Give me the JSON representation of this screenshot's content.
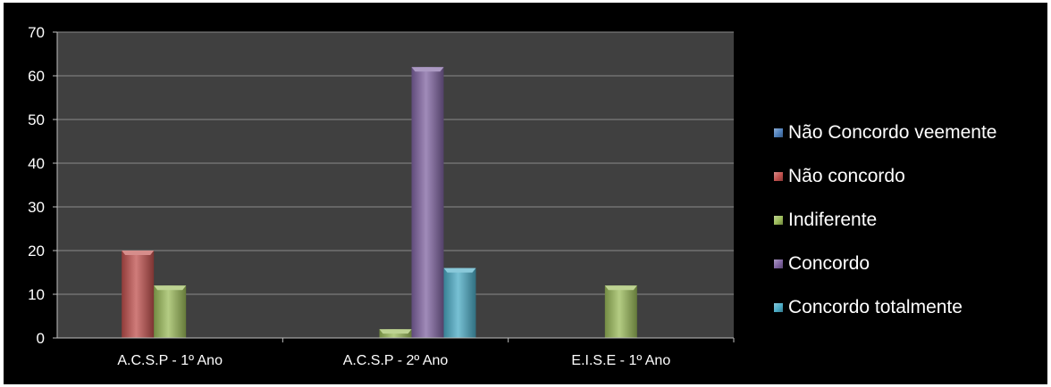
{
  "chart_data": {
    "type": "bar",
    "categories": [
      "A.C.S.P - 1º Ano",
      "A.C.S.P - 2º Ano",
      "E.I.S.E - 1º Ano"
    ],
    "series": [
      {
        "name": "Não Concordo veemente",
        "values": [
          0,
          0,
          0
        ],
        "color": "#4f81bd"
      },
      {
        "name": "Não concordo",
        "values": [
          20,
          0,
          0
        ],
        "color": "#c0504d"
      },
      {
        "name": "Indiferente",
        "values": [
          12,
          2,
          12
        ],
        "color": "#9bbb59"
      },
      {
        "name": "Concordo",
        "values": [
          0,
          62,
          0
        ],
        "color": "#8064a2"
      },
      {
        "name": "Concordo totalmente",
        "values": [
          0,
          16,
          0
        ],
        "color": "#4bacc6"
      }
    ],
    "yticks": [
      "0",
      "10",
      "20",
      "30",
      "40",
      "50",
      "60",
      "70"
    ],
    "ylim": [
      0,
      70
    ],
    "grid": true,
    "legend_position": "right",
    "background": "#000000",
    "plot_background": "#404040"
  }
}
